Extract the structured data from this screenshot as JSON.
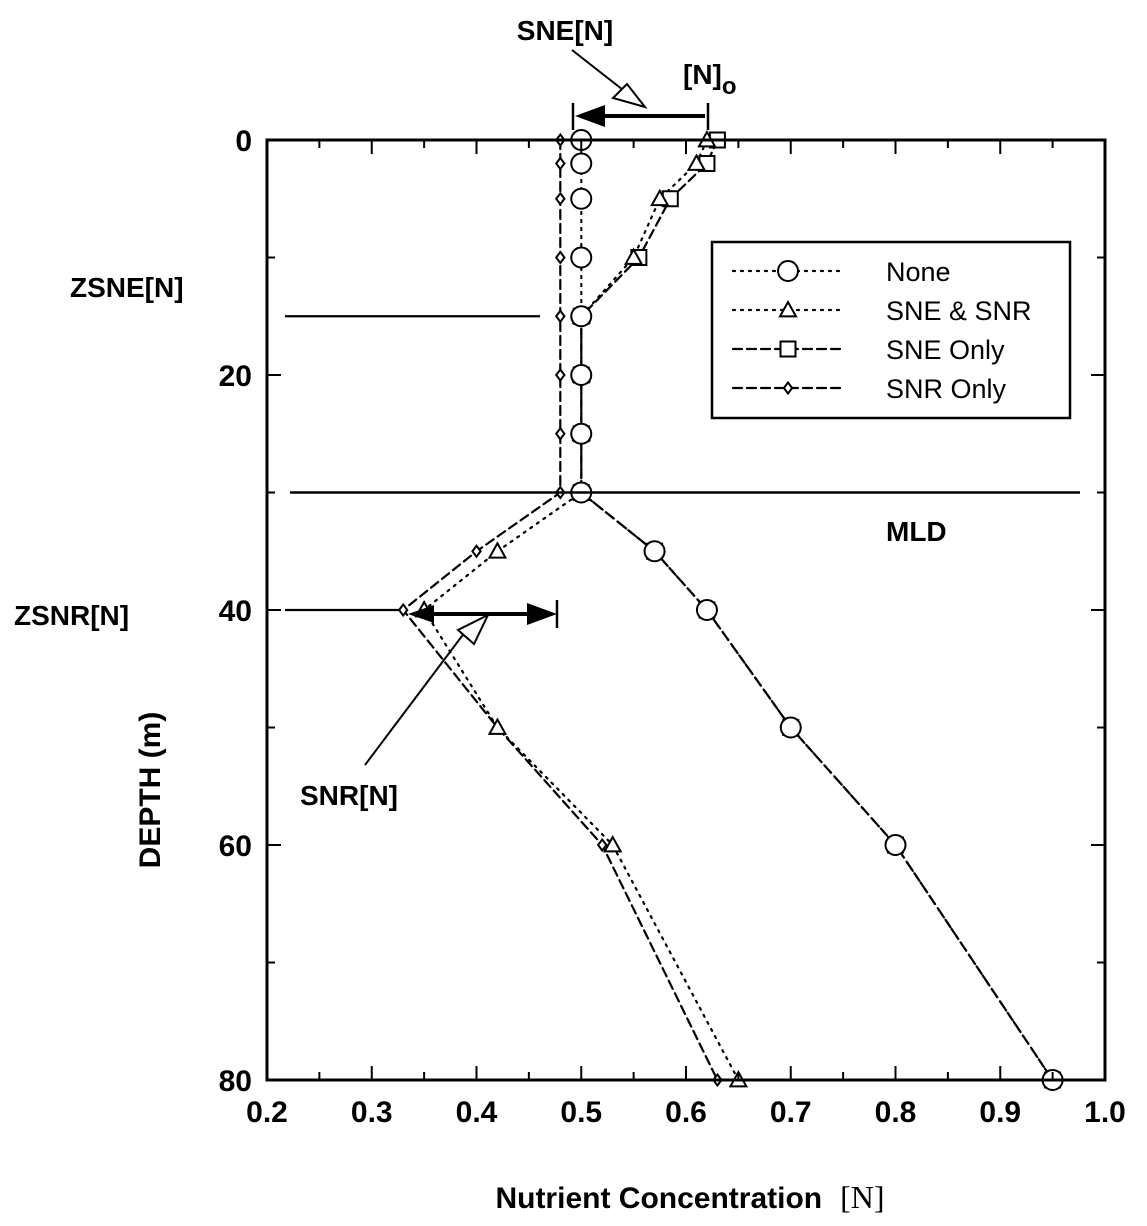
{
  "chart_data": {
    "type": "line",
    "xlabel": "Nutrient Concentration",
    "xlabel_unit": "[N]",
    "ylabel": "DEPTH  (m)",
    "xlim": [
      0.2,
      1.0
    ],
    "ylim": [
      0,
      80
    ],
    "y_inverted": true,
    "x_ticks": [
      "0.2",
      "0.3",
      "0.4",
      "0.5",
      "0.6",
      "0.7",
      "0.8",
      "0.9",
      "1.0"
    ],
    "y_ticks": [
      "0",
      "20",
      "40",
      "60",
      "80"
    ],
    "grid": false,
    "legend_position": "top-right",
    "series": [
      {
        "name": "None",
        "marker": "circle",
        "line_style": "dotted",
        "points": [
          [
            0.5,
            0
          ],
          [
            0.5,
            2
          ],
          [
            0.5,
            5
          ],
          [
            0.5,
            10
          ],
          [
            0.5,
            15
          ],
          [
            0.5,
            20
          ],
          [
            0.5,
            25
          ],
          [
            0.5,
            30
          ],
          [
            0.57,
            35
          ],
          [
            0.62,
            40
          ],
          [
            0.7,
            50
          ],
          [
            0.8,
            60
          ],
          [
            0.95,
            80
          ]
        ]
      },
      {
        "name": "SNE & SNR",
        "marker": "triangle",
        "line_style": "dotted",
        "points": [
          [
            0.62,
            0
          ],
          [
            0.61,
            2
          ],
          [
            0.575,
            5
          ],
          [
            0.55,
            10
          ],
          [
            0.5,
            15
          ],
          [
            0.5,
            20
          ],
          [
            0.5,
            25
          ],
          [
            0.5,
            30
          ],
          [
            0.42,
            35
          ],
          [
            0.35,
            40
          ],
          [
            0.42,
            50
          ],
          [
            0.53,
            60
          ],
          [
            0.65,
            80
          ]
        ]
      },
      {
        "name": "SNE Only",
        "marker": "square",
        "line_style": "dashed",
        "points": [
          [
            0.63,
            0
          ],
          [
            0.62,
            2
          ],
          [
            0.585,
            5
          ],
          [
            0.555,
            10
          ],
          [
            0.5,
            15
          ],
          [
            0.5,
            20
          ],
          [
            0.5,
            25
          ],
          [
            0.5,
            30
          ],
          [
            0.57,
            35
          ],
          [
            0.62,
            40
          ],
          [
            0.7,
            50
          ],
          [
            0.8,
            60
          ],
          [
            0.95,
            80
          ]
        ]
      },
      {
        "name": "SNR Only",
        "marker": "diamond",
        "line_style": "dashed",
        "points": [
          [
            0.48,
            0
          ],
          [
            0.48,
            2
          ],
          [
            0.48,
            5
          ],
          [
            0.48,
            10
          ],
          [
            0.48,
            15
          ],
          [
            0.48,
            20
          ],
          [
            0.48,
            25
          ],
          [
            0.48,
            30
          ],
          [
            0.4,
            35
          ],
          [
            0.33,
            40
          ],
          [
            0.42,
            50
          ],
          [
            0.52,
            60
          ],
          [
            0.63,
            80
          ]
        ]
      }
    ],
    "annotations": {
      "sne": "SNE[N]",
      "n0_main": "[N]",
      "n0_sub": "o",
      "zsne": "ZSNE[N]",
      "zsnr": "ZSNR[N]",
      "snr": "SNR[N]",
      "mld": "MLD"
    },
    "reference_lines": {
      "zsne_depth": 15,
      "mld_depth": 30,
      "zsnr_depth": 40
    }
  }
}
